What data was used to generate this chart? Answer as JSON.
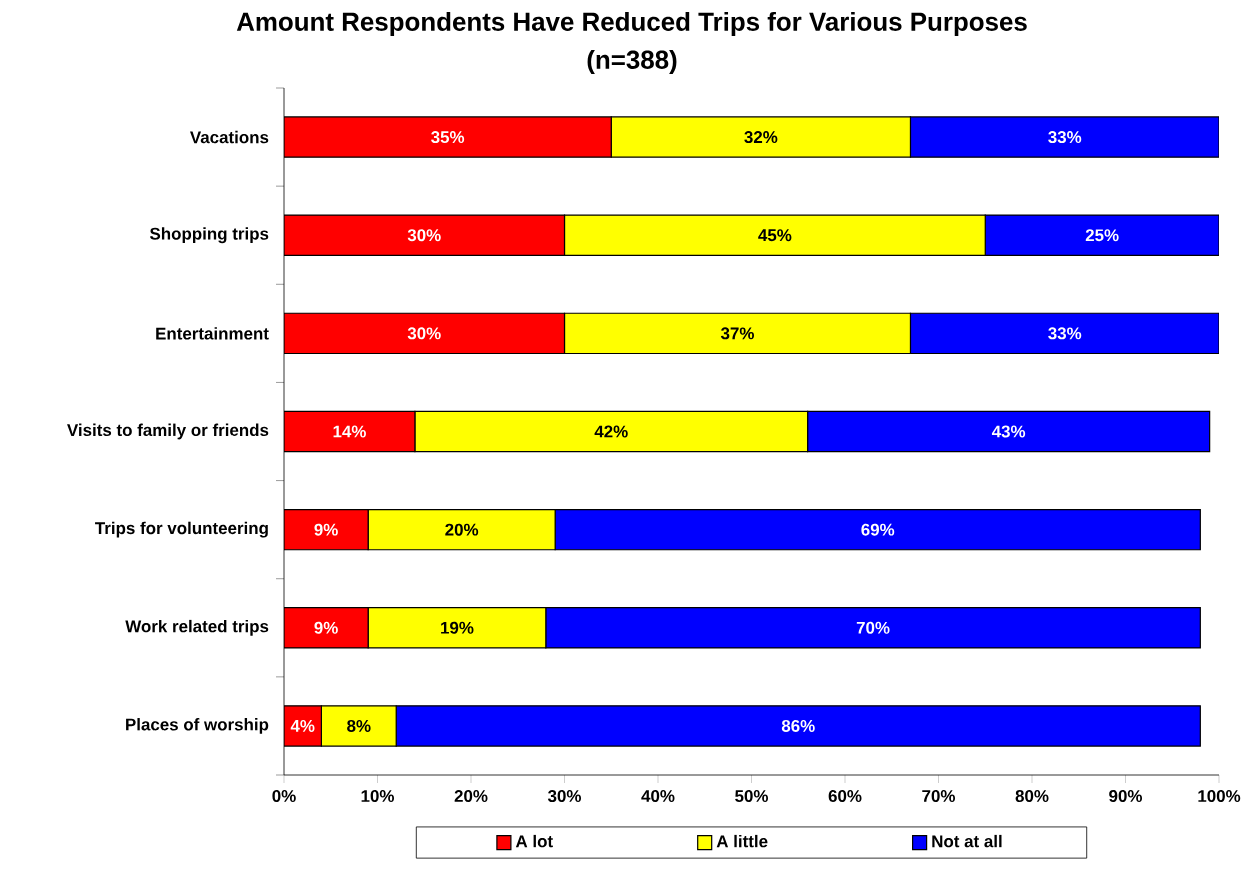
{
  "chart_data": {
    "type": "bar",
    "orientation": "horizontal",
    "stacked": true,
    "title": "Amount Respondents Have Reduced Trips for Various Purposes",
    "subtitle": "(n=388)",
    "categories": [
      "Vacations",
      "Shopping trips",
      "Entertainment",
      "Visits to family or friends",
      "Trips for volunteering",
      "Work related trips",
      "Places of worship"
    ],
    "series": [
      {
        "name": "A lot",
        "color": "#ff0000",
        "values": [
          35,
          30,
          30,
          14,
          9,
          9,
          4
        ],
        "value_labels": [
          "35%",
          "30%",
          "30%",
          "14%",
          "9%",
          "9%",
          "4%"
        ]
      },
      {
        "name": "A little",
        "color": "#ffff00",
        "values": [
          32,
          45,
          37,
          42,
          20,
          19,
          8
        ],
        "value_labels": [
          "32%",
          "45%",
          "37%",
          "42%",
          "20%",
          "19%",
          "8%"
        ]
      },
      {
        "name": "Not at all",
        "color": "#0000ff",
        "values": [
          33,
          25,
          33,
          43,
          69,
          70,
          86
        ],
        "value_labels": [
          "33%",
          "25%",
          "33%",
          "43%",
          "69%",
          "70%",
          "86%"
        ]
      }
    ],
    "xlim": [
      0,
      100
    ],
    "xticks": [
      {
        "value": 0,
        "label": "0%"
      },
      {
        "value": 10,
        "label": "10%"
      },
      {
        "value": 20,
        "label": "20%"
      },
      {
        "value": 30,
        "label": "30%"
      },
      {
        "value": 40,
        "label": "40%"
      },
      {
        "value": 50,
        "label": "50%"
      },
      {
        "value": 60,
        "label": "60%"
      },
      {
        "value": 70,
        "label": "70%"
      },
      {
        "value": 80,
        "label": "80%"
      },
      {
        "value": 90,
        "label": "90%"
      },
      {
        "value": 100,
        "label": "100%"
      }
    ],
    "legend": "bottom",
    "grid": false
  }
}
